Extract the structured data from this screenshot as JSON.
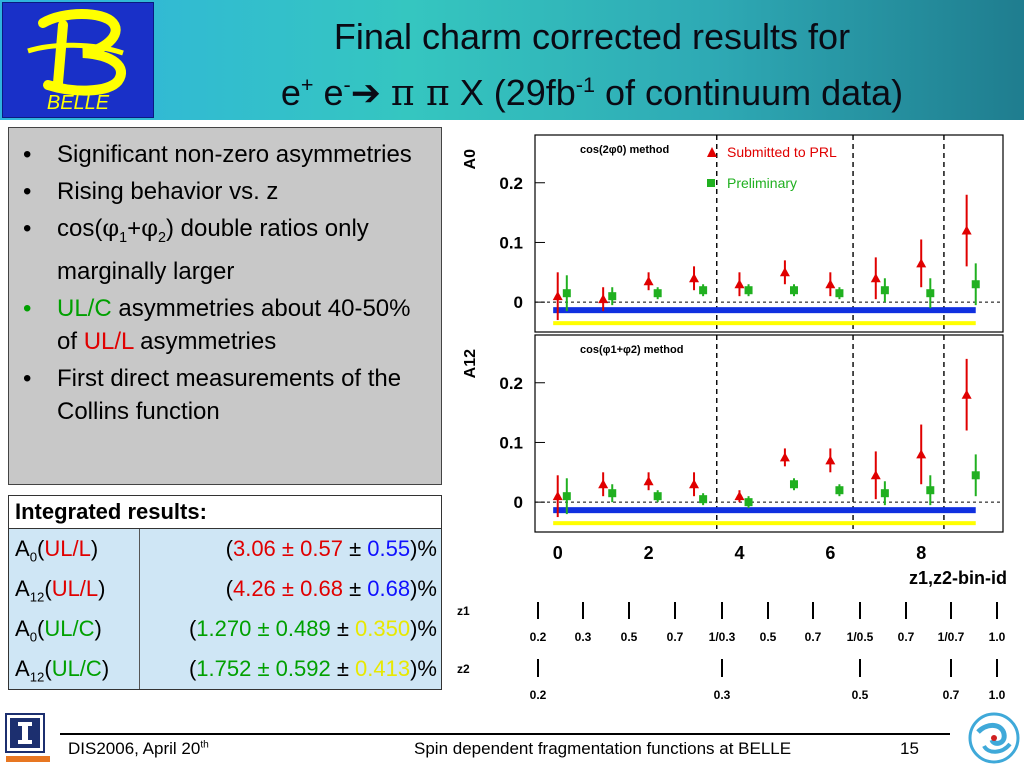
{
  "header": {
    "logo_text": "BELLE",
    "title_line1": "Final charm corrected results for",
    "title_line2": {
      "e": "e",
      "plus": "+",
      "e2": "e",
      "minus": "-",
      "arrow": "➔",
      "pi": "π π",
      "x": "X (29fb",
      "lumi_exp": "-1",
      "rest": "of continuum data)"
    }
  },
  "bullets": {
    "items": [
      {
        "text": "Significant non-zero asymmetries"
      },
      {
        "text": "Rising behavior vs. z"
      },
      {
        "pre": "cos(",
        "phi1": "φ",
        "sub1": "1",
        "plus": "+",
        "phi2": "φ",
        "sub2": "2",
        "post": ") double ratios only marginally larger"
      },
      {
        "ulc": "UL/C",
        "mid": " asymmetries about 40-50% of ",
        "ull": "UL/L",
        "post": " asymmetries"
      },
      {
        "text": "First direct measurements of the Collins function"
      }
    ]
  },
  "results": {
    "header": "Integrated results:",
    "rows": [
      {
        "A": "A",
        "sub": "0",
        "type": "UL/L",
        "val": "3.06",
        "stat": "0.57",
        "sys": "0.55"
      },
      {
        "A": "A",
        "sub": "12",
        "type": "UL/L",
        "val": "4.26",
        "stat": "0.68",
        "sys": "0.68"
      },
      {
        "A": "A",
        "sub": "0",
        "type": "UL/C",
        "val": "1.270",
        "stat": "0.489",
        "sys": "0.350"
      },
      {
        "A": "A",
        "sub": "12",
        "type": "UL/C",
        "val": "1.752",
        "stat": "0.592",
        "sys": "0.413"
      }
    ],
    "pm": "±",
    "open": "(",
    "lparen": "(",
    "rparen": ")",
    "close": ")%"
  },
  "chart_data": {
    "type": "scatter",
    "panels": [
      {
        "method": "cos(2φ0) method",
        "ylabel": "A0",
        "series": [
          {
            "name": "Submitted to PRL",
            "color": "#e00000",
            "marker": "triangle",
            "x": [
              0,
              1,
              2,
              3,
              4,
              5,
              6,
              7,
              8,
              9
            ],
            "y": [
              0.01,
              0.005,
              0.035,
              0.04,
              0.03,
              0.05,
              0.03,
              0.04,
              0.065,
              0.12
            ],
            "err": [
              0.04,
              0.02,
              0.015,
              0.02,
              0.02,
              0.02,
              0.02,
              0.035,
              0.04,
              0.06
            ]
          },
          {
            "name": "Preliminary",
            "color": "#20b020",
            "marker": "square",
            "x": [
              0.2,
              1.2,
              2.2,
              3.2,
              4.2,
              5.2,
              6.2,
              7.2,
              8.2,
              9.2
            ],
            "y": [
              0.015,
              0.01,
              0.015,
              0.02,
              0.02,
              0.02,
              0.015,
              0.02,
              0.015,
              0.03
            ],
            "err": [
              0.03,
              0.015,
              0.01,
              0.01,
              0.01,
              0.01,
              0.01,
              0.02,
              0.025,
              0.035
            ]
          }
        ],
        "yticks": [
          0,
          0.1,
          0.2
        ],
        "ylim": [
          -0.05,
          0.28
        ]
      },
      {
        "method": "cos(φ1+φ2) method",
        "ylabel": "A12",
        "series": [
          {
            "name": "Submitted to PRL",
            "color": "#e00000",
            "marker": "triangle",
            "x": [
              0,
              1,
              2,
              3,
              4,
              5,
              6,
              7,
              8,
              9
            ],
            "y": [
              0.01,
              0.03,
              0.035,
              0.03,
              0.01,
              0.075,
              0.07,
              0.045,
              0.08,
              0.18
            ],
            "err": [
              0.035,
              0.02,
              0.015,
              0.02,
              0.01,
              0.015,
              0.02,
              0.04,
              0.05,
              0.06
            ]
          },
          {
            "name": "Preliminary",
            "color": "#20b020",
            "marker": "square",
            "x": [
              0.2,
              1.2,
              2.2,
              3.2,
              4.2,
              5.2,
              6.2,
              7.2,
              8.2,
              9.2
            ],
            "y": [
              0.01,
              0.015,
              0.01,
              0.005,
              0.0,
              0.03,
              0.02,
              0.015,
              0.02,
              0.045
            ],
            "err": [
              0.03,
              0.015,
              0.01,
              0.01,
              0.01,
              0.01,
              0.01,
              0.02,
              0.025,
              0.035
            ]
          }
        ],
        "yticks": [
          0,
          0.1,
          0.2
        ],
        "ylim": [
          -0.05,
          0.28
        ]
      }
    ],
    "xticks": [
      0,
      2,
      4,
      6,
      8
    ],
    "xlabel": "z1,z2-bin-id",
    "xlim": [
      -0.5,
      9.8
    ],
    "dashed_x": [
      3.5,
      6.5,
      8.5
    ],
    "legend": [
      {
        "label": "Submitted to PRL",
        "color": "#e00000",
        "marker": "triangle"
      },
      {
        "label": "Preliminary",
        "color": "#20b020",
        "marker": "square"
      }
    ],
    "z1_label": "z1",
    "z2_label": "z2",
    "z1_ticks": [
      "0.2",
      "0.3",
      "0.5",
      "0.7",
      "1/0.3",
      "0.5",
      "0.7",
      "1/0.5",
      "0.7",
      "1/0.7",
      "1.0"
    ],
    "z2_ticks": [
      "0.2",
      "0.3",
      "0.5",
      "0.7",
      "1.0"
    ]
  },
  "footer": {
    "left": "DIS2006, April 20",
    "left_sup": "th",
    "center": "Spin dependent fragmentation functions at BELLE",
    "page": "15"
  }
}
